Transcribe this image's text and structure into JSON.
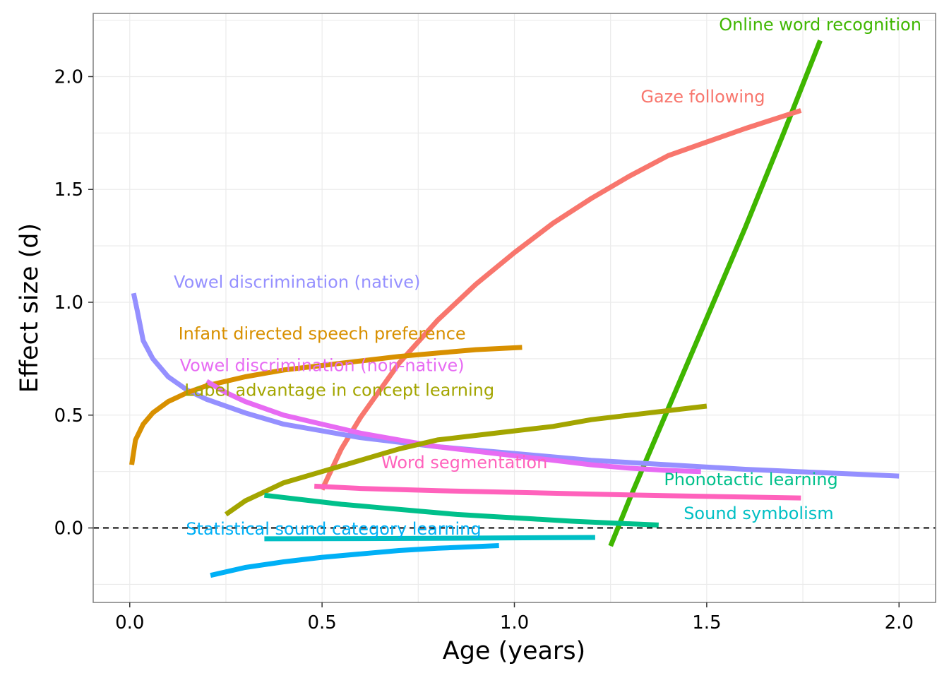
{
  "chart_data": {
    "type": "line",
    "xlabel": "Age (years)",
    "ylabel": "Effect size (d)",
    "xlim": [
      -0.095,
      2.095
    ],
    "ylim": [
      -0.33,
      2.28
    ],
    "x_ticks": [
      0.0,
      0.5,
      1.0,
      1.5,
      2.0
    ],
    "x_tick_labels": [
      "0.0",
      "0.5",
      "1.0",
      "1.5",
      "2.0"
    ],
    "y_ticks": [
      0.0,
      0.5,
      1.0,
      1.5,
      2.0
    ],
    "y_tick_labels": [
      "0.0",
      "0.5",
      "1.0",
      "1.5",
      "2.0"
    ],
    "grid": true,
    "reference_line": {
      "y": 0,
      "style": "dashed"
    },
    "series": [
      {
        "name": "Online word recognition",
        "color": "#3fb600",
        "label_at": [
          1.795,
          2.23
        ],
        "points": [
          [
            1.25,
            -0.08
          ],
          [
            1.3,
            0.13
          ],
          [
            1.4,
            0.53
          ],
          [
            1.5,
            0.93
          ],
          [
            1.6,
            1.33
          ],
          [
            1.7,
            1.75
          ],
          [
            1.795,
            2.16
          ]
        ]
      },
      {
        "name": "Gaze following",
        "color": "#f8766d",
        "label_at": [
          1.49,
          1.91
        ],
        "points": [
          [
            0.5,
            0.17
          ],
          [
            0.55,
            0.35
          ],
          [
            0.6,
            0.49
          ],
          [
            0.7,
            0.73
          ],
          [
            0.8,
            0.92
          ],
          [
            0.9,
            1.08
          ],
          [
            1.0,
            1.22
          ],
          [
            1.1,
            1.35
          ],
          [
            1.2,
            1.46
          ],
          [
            1.3,
            1.56
          ],
          [
            1.4,
            1.65
          ],
          [
            1.5,
            1.71
          ],
          [
            1.6,
            1.77
          ],
          [
            1.745,
            1.85
          ]
        ]
      },
      {
        "name": "Vowel discrimination (native)",
        "color": "#9590ff",
        "label_at": [
          0.435,
          1.09
        ],
        "points": [
          [
            0.01,
            1.04
          ],
          [
            0.02,
            0.96
          ],
          [
            0.035,
            0.83
          ],
          [
            0.06,
            0.75
          ],
          [
            0.1,
            0.67
          ],
          [
            0.15,
            0.61
          ],
          [
            0.2,
            0.57
          ],
          [
            0.3,
            0.51
          ],
          [
            0.4,
            0.46
          ],
          [
            0.5,
            0.43
          ],
          [
            0.6,
            0.4
          ],
          [
            0.7,
            0.38
          ],
          [
            0.8,
            0.36
          ],
          [
            1.0,
            0.33
          ],
          [
            1.2,
            0.3
          ],
          [
            1.4,
            0.28
          ],
          [
            1.6,
            0.26
          ],
          [
            1.8,
            0.245
          ],
          [
            2.0,
            0.23
          ]
        ]
      },
      {
        "name": "Infant directed speech preference",
        "color": "#d89000",
        "label_at": [
          0.5,
          0.86
        ],
        "points": [
          [
            0.005,
            0.28
          ],
          [
            0.015,
            0.39
          ],
          [
            0.035,
            0.46
          ],
          [
            0.06,
            0.51
          ],
          [
            0.1,
            0.56
          ],
          [
            0.15,
            0.6
          ],
          [
            0.2,
            0.63
          ],
          [
            0.3,
            0.67
          ],
          [
            0.4,
            0.7
          ],
          [
            0.5,
            0.72
          ],
          [
            0.6,
            0.74
          ],
          [
            0.7,
            0.76
          ],
          [
            0.8,
            0.775
          ],
          [
            0.9,
            0.79
          ],
          [
            1.02,
            0.8
          ]
        ]
      },
      {
        "name": "Vowel discrimination (non-native)",
        "color": "#e76bf3",
        "label_at": [
          0.5,
          0.72
        ],
        "points": [
          [
            0.2,
            0.65
          ],
          [
            0.25,
            0.6
          ],
          [
            0.3,
            0.56
          ],
          [
            0.4,
            0.5
          ],
          [
            0.5,
            0.46
          ],
          [
            0.6,
            0.42
          ],
          [
            0.7,
            0.39
          ],
          [
            0.8,
            0.36
          ],
          [
            0.9,
            0.34
          ],
          [
            1.0,
            0.32
          ],
          [
            1.1,
            0.3
          ],
          [
            1.2,
            0.28
          ],
          [
            1.3,
            0.265
          ],
          [
            1.4,
            0.255
          ],
          [
            1.485,
            0.25
          ]
        ]
      },
      {
        "name": "Label advantage in concept learning",
        "color": "#a3a500",
        "label_at": [
          0.545,
          0.61
        ],
        "points": [
          [
            0.25,
            0.06
          ],
          [
            0.3,
            0.12
          ],
          [
            0.35,
            0.16
          ],
          [
            0.4,
            0.2
          ],
          [
            0.5,
            0.25
          ],
          [
            0.6,
            0.3
          ],
          [
            0.7,
            0.35
          ],
          [
            0.8,
            0.39
          ],
          [
            0.9,
            0.41
          ],
          [
            1.0,
            0.43
          ],
          [
            1.1,
            0.45
          ],
          [
            1.2,
            0.48
          ],
          [
            1.3,
            0.5
          ],
          [
            1.4,
            0.52
          ],
          [
            1.5,
            0.54
          ]
        ]
      },
      {
        "name": "Word segmentation",
        "color": "#ff62bc",
        "label_at": [
          0.87,
          0.29
        ],
        "points": [
          [
            0.48,
            0.185
          ],
          [
            0.6,
            0.175
          ],
          [
            0.8,
            0.165
          ],
          [
            1.0,
            0.158
          ],
          [
            1.2,
            0.15
          ],
          [
            1.4,
            0.143
          ],
          [
            1.6,
            0.137
          ],
          [
            1.745,
            0.133
          ]
        ]
      },
      {
        "name": "Phonotactic learning",
        "color": "#00c08b",
        "label_at": [
          1.615,
          0.215
        ],
        "points": [
          [
            0.35,
            0.145
          ],
          [
            0.45,
            0.125
          ],
          [
            0.55,
            0.105
          ],
          [
            0.65,
            0.09
          ],
          [
            0.75,
            0.075
          ],
          [
            0.85,
            0.06
          ],
          [
            0.95,
            0.05
          ],
          [
            1.05,
            0.04
          ],
          [
            1.15,
            0.03
          ],
          [
            1.25,
            0.022
          ],
          [
            1.375,
            0.013
          ]
        ]
      },
      {
        "name": "Sound symbolism",
        "color": "#00bfc4",
        "label_at": [
          1.635,
          0.065
        ],
        "points": [
          [
            0.35,
            -0.048
          ],
          [
            0.6,
            -0.047
          ],
          [
            0.9,
            -0.045
          ],
          [
            1.21,
            -0.042
          ]
        ]
      },
      {
        "name": "Statistical sound category learning",
        "color": "#00b0f6",
        "label_at": [
          0.53,
          -0.005
        ],
        "points": [
          [
            0.21,
            -0.21
          ],
          [
            0.3,
            -0.175
          ],
          [
            0.4,
            -0.15
          ],
          [
            0.5,
            -0.13
          ],
          [
            0.6,
            -0.115
          ],
          [
            0.7,
            -0.1
          ],
          [
            0.8,
            -0.09
          ],
          [
            0.96,
            -0.078
          ]
        ]
      }
    ]
  }
}
